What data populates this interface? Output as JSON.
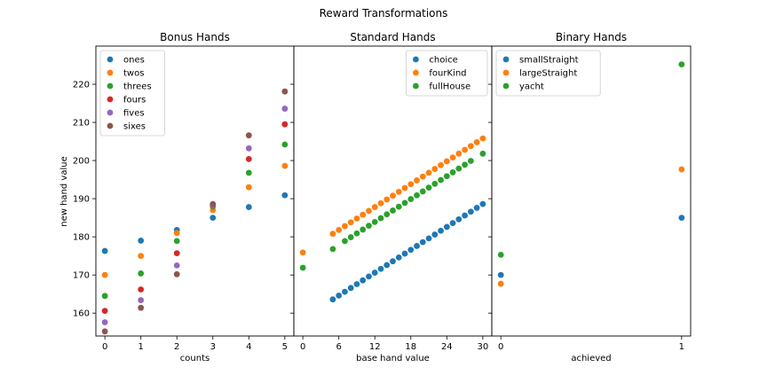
{
  "figure": {
    "suptitle": "Reward Transformations",
    "ylabel": "new hand value"
  },
  "colors": {
    "c0": "#1f77b4",
    "c1": "#ff7f0e",
    "c2": "#2ca02c",
    "c3": "#d62728",
    "c4": "#9467bd",
    "c5": "#8c564b"
  },
  "chart_data": [
    {
      "type": "scatter",
      "title": "Bonus Hands",
      "xlabel": "counts",
      "ylabel": "new hand value",
      "xlim": [
        -0.25,
        5.25
      ],
      "ylim": [
        154,
        230
      ],
      "xticks": [
        0,
        1,
        2,
        3,
        4,
        5
      ],
      "yticks": [
        160,
        170,
        180,
        190,
        200,
        210,
        220
      ],
      "legend": "top-left",
      "grid": false,
      "series": [
        {
          "name": "ones",
          "x": [
            0,
            1,
            2,
            3,
            4,
            5
          ],
          "y": [
            176.3,
            179.0,
            181.8,
            185.0,
            187.8,
            190.9
          ]
        },
        {
          "name": "twos",
          "x": [
            0,
            1,
            2,
            3,
            4,
            5
          ],
          "y": [
            170.0,
            175.0,
            181.0,
            187.0,
            193.0,
            198.6
          ]
        },
        {
          "name": "threes",
          "x": [
            0,
            1,
            2,
            3,
            4,
            5
          ],
          "y": [
            164.5,
            170.4,
            178.9,
            188.0,
            196.8,
            204.2
          ]
        },
        {
          "name": "fours",
          "x": [
            0,
            1,
            2,
            3,
            4,
            5
          ],
          "y": [
            160.6,
            166.2,
            175.7,
            188.2,
            200.4,
            209.5
          ]
        },
        {
          "name": "fives",
          "x": [
            0,
            1,
            2,
            3,
            4,
            5
          ],
          "y": [
            157.6,
            163.4,
            172.5,
            188.3,
            203.2,
            213.6
          ]
        },
        {
          "name": "sixes",
          "x": [
            0,
            1,
            2,
            3,
            4,
            5
          ],
          "y": [
            155.2,
            161.4,
            170.2,
            188.6,
            206.6,
            218.1
          ]
        }
      ]
    },
    {
      "type": "scatter",
      "title": "Standard Hands",
      "xlabel": "base hand value",
      "xlim": [
        -1.5,
        31.5
      ],
      "ylim": [
        154,
        230
      ],
      "xticks": [
        0,
        6,
        12,
        18,
        24,
        30
      ],
      "legend": "top-right",
      "grid": false,
      "series": [
        {
          "name": "choice",
          "x": [
            5,
            6,
            7,
            8,
            9,
            10,
            11,
            12,
            13,
            14,
            15,
            16,
            17,
            18,
            19,
            20,
            21,
            22,
            23,
            24,
            25,
            26,
            27,
            28,
            29,
            30
          ],
          "y": [
            163.6,
            164.6,
            165.6,
            166.6,
            167.6,
            168.6,
            169.6,
            170.6,
            171.6,
            172.6,
            173.6,
            174.6,
            175.6,
            176.6,
            177.6,
            178.6,
            179.6,
            180.6,
            181.6,
            182.6,
            183.6,
            184.6,
            185.6,
            186.6,
            187.6,
            188.6
          ]
        },
        {
          "name": "fourKind",
          "x": [
            0,
            5,
            6,
            7,
            8,
            9,
            10,
            11,
            12,
            13,
            14,
            15,
            16,
            17,
            18,
            19,
            20,
            21,
            22,
            23,
            24,
            25,
            26,
            27,
            28,
            29,
            30
          ],
          "y": [
            175.9,
            180.8,
            181.8,
            182.8,
            183.8,
            184.8,
            185.8,
            186.8,
            187.8,
            188.8,
            189.8,
            190.8,
            191.8,
            192.8,
            193.8,
            194.8,
            195.8,
            196.8,
            197.8,
            198.8,
            199.8,
            200.8,
            201.8,
            202.8,
            203.8,
            204.8,
            205.8
          ]
        },
        {
          "name": "fullHouse",
          "x": [
            0,
            5,
            7,
            8,
            9,
            10,
            11,
            12,
            13,
            14,
            15,
            16,
            17,
            18,
            19,
            20,
            21,
            22,
            23,
            24,
            25,
            26,
            27,
            28,
            30
          ],
          "y": [
            171.9,
            176.8,
            178.9,
            179.9,
            180.9,
            181.9,
            182.9,
            183.9,
            184.9,
            185.9,
            186.9,
            187.9,
            188.9,
            189.9,
            190.9,
            191.9,
            192.9,
            193.9,
            194.9,
            195.9,
            196.9,
            197.9,
            198.9,
            199.9,
            201.8
          ]
        }
      ]
    },
    {
      "type": "scatter",
      "title": "Binary Hands",
      "xlabel": "achieved",
      "xlim": [
        -0.05,
        1.05
      ],
      "ylim": [
        154,
        230
      ],
      "xticks": [
        0,
        1
      ],
      "legend": "top-left",
      "grid": false,
      "series": [
        {
          "name": "smallStraight",
          "x": [
            0,
            1
          ],
          "y": [
            170.0,
            185.0
          ]
        },
        {
          "name": "largeStraight",
          "x": [
            0,
            1
          ],
          "y": [
            167.7,
            197.7
          ]
        },
        {
          "name": "yacht",
          "x": [
            0,
            1
          ],
          "y": [
            175.3,
            225.2
          ]
        }
      ]
    }
  ]
}
